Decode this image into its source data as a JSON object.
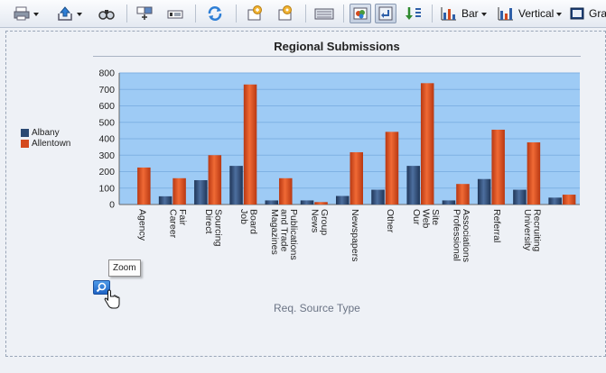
{
  "toolbar": {
    "icons": [
      "print-icon",
      "export-icon",
      "view-icon",
      "properties-icon",
      "format-icon",
      "refresh-icon",
      "add-icon",
      "settings-icon",
      "keyboard-icon",
      "chart-palette-icon",
      "swap-icon",
      "sort-icon",
      "bar-chart-icon",
      "vertical-chart-icon",
      "graph-icon"
    ],
    "bar_label": "Bar",
    "vertical_label": "Vertical",
    "graph_label": "Gra"
  },
  "chart_data": {
    "type": "bar",
    "title": "Regional Submissions",
    "xlabel": "Req. Source Type",
    "ylabel": "",
    "ylim": [
      0,
      800
    ],
    "yticks": [
      0,
      100,
      200,
      300,
      400,
      500,
      600,
      700,
      800
    ],
    "grid": true,
    "legend_position": "left",
    "categories": [
      [
        "Agency"
      ],
      [
        "Career",
        "Fair"
      ],
      [
        "Direct",
        "Sourcing"
      ],
      [
        "Job",
        "Board"
      ],
      [
        "Magazines",
        "and Trade",
        "Publications"
      ],
      [
        "News",
        "Group"
      ],
      [
        "Newspapers"
      ],
      [
        "Other"
      ],
      [
        "Our",
        "Web",
        "Site"
      ],
      [
        "Professional",
        "Associations"
      ],
      [
        "Referral"
      ],
      [
        "University",
        "Recruiting"
      ],
      [
        ""
      ]
    ],
    "series": [
      {
        "name": "Albany",
        "color": "#2c4a73",
        "values": [
          0,
          50,
          148,
          235,
          25,
          25,
          52,
          90,
          235,
          25,
          155,
          90,
          42
        ]
      },
      {
        "name": "Allentown",
        "color": "#d44a1e",
        "values": [
          225,
          160,
          300,
          730,
          160,
          15,
          318,
          442,
          738,
          125,
          455,
          378,
          60
        ]
      }
    ]
  },
  "zoom": {
    "tooltip": "Zoom"
  }
}
